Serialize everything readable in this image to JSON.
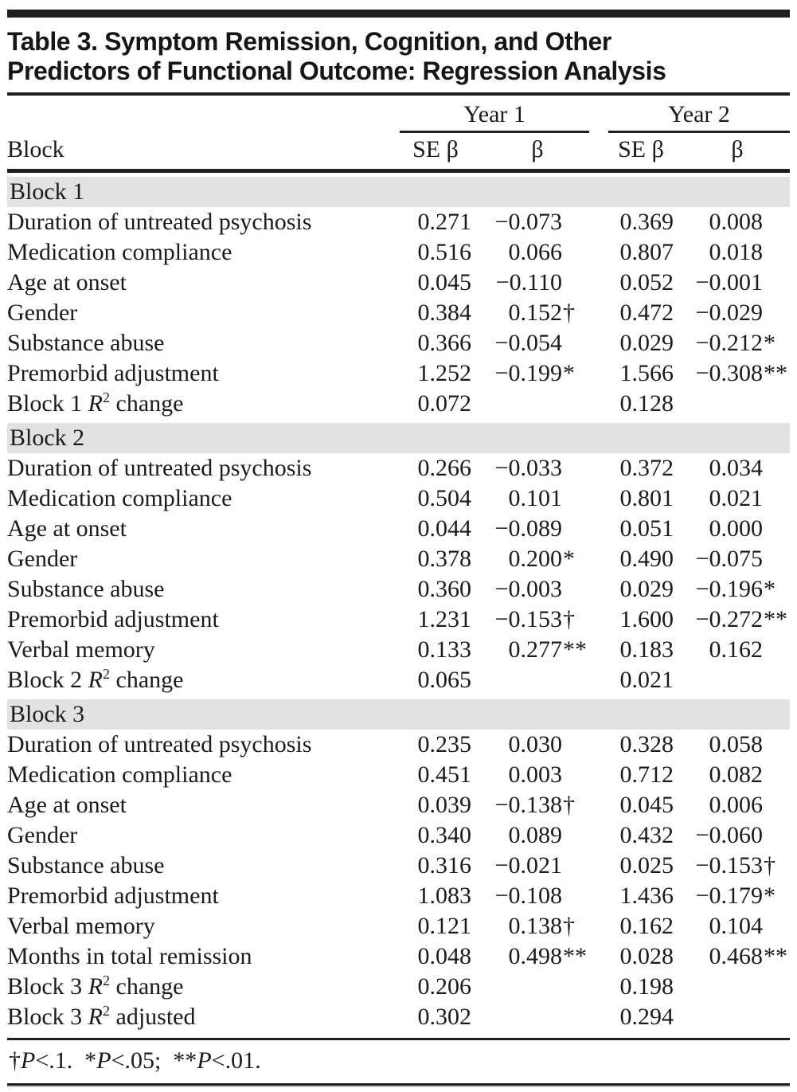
{
  "title": {
    "line1": "Table 3. Symptom Remission, Cognition, and Other",
    "line2": "Predictors of Functional Outcome: Regression Analysis"
  },
  "columns": {
    "row_header": "Block",
    "year1": "Year 1",
    "year2": "Year 2",
    "se_year1": "SE β",
    "beta_year1": "β",
    "se_year2": "SE β",
    "beta_year2": "β"
  },
  "blocks": [
    {
      "name": "Block 1",
      "rows": [
        {
          "label": "Duration of untreated psychosis",
          "se1": "0.271",
          "b1": "−0.073",
          "b1s": "",
          "se2": "0.369",
          "b2": "0.008",
          "b2s": ""
        },
        {
          "label": "Medication compliance",
          "se1": "0.516",
          "b1": "0.066",
          "b1s": "",
          "se2": "0.807",
          "b2": "0.018",
          "b2s": ""
        },
        {
          "label": "Age at onset",
          "se1": "0.045",
          "b1": "−0.110",
          "b1s": "",
          "se2": "0.052",
          "b2": "−0.001",
          "b2s": ""
        },
        {
          "label": "Gender",
          "se1": "0.384",
          "b1": "0.152",
          "b1s": "†",
          "se2": "0.472",
          "b2": "−0.029",
          "b2s": ""
        },
        {
          "label": "Substance abuse",
          "se1": "0.366",
          "b1": "−0.054",
          "b1s": "",
          "se2": "0.029",
          "b2": "−0.212",
          "b2s": "*"
        },
        {
          "label": "Premorbid adjustment",
          "se1": "1.252",
          "b1": "−0.199",
          "b1s": "*",
          "se2": "1.566",
          "b2": "−0.308",
          "b2s": "**"
        },
        {
          "label_pre": "Block 1 ",
          "label_math": "R",
          "label_sup": "2",
          "label_post": " change",
          "se1": "0.072",
          "b1": "",
          "b1s": "",
          "se2": "0.128",
          "b2": "",
          "b2s": ""
        }
      ]
    },
    {
      "name": "Block 2",
      "rows": [
        {
          "label": "Duration of untreated psychosis",
          "se1": "0.266",
          "b1": "−0.033",
          "b1s": "",
          "se2": "0.372",
          "b2": "0.034",
          "b2s": ""
        },
        {
          "label": "Medication compliance",
          "se1": "0.504",
          "b1": "0.101",
          "b1s": "",
          "se2": "0.801",
          "b2": "0.021",
          "b2s": ""
        },
        {
          "label": "Age at onset",
          "se1": "0.044",
          "b1": "−0.089",
          "b1s": "",
          "se2": "0.051",
          "b2": "0.000",
          "b2s": ""
        },
        {
          "label": "Gender",
          "se1": "0.378",
          "b1": "0.200",
          "b1s": "*",
          "se2": "0.490",
          "b2": "−0.075",
          "b2s": ""
        },
        {
          "label": "Substance abuse",
          "se1": "0.360",
          "b1": "−0.003",
          "b1s": "",
          "se2": "0.029",
          "b2": "−0.196",
          "b2s": "*"
        },
        {
          "label": "Premorbid adjustment",
          "se1": "1.231",
          "b1": "−0.153",
          "b1s": "†",
          "se2": "1.600",
          "b2": "−0.272",
          "b2s": "**"
        },
        {
          "label": "Verbal memory",
          "se1": "0.133",
          "b1": "0.277",
          "b1s": "**",
          "se2": "0.183",
          "b2": "0.162",
          "b2s": ""
        },
        {
          "label_pre": "Block 2 ",
          "label_math": "R",
          "label_sup": "2",
          "label_post": " change",
          "se1": "0.065",
          "b1": "",
          "b1s": "",
          "se2": "0.021",
          "b2": "",
          "b2s": ""
        }
      ]
    },
    {
      "name": "Block 3",
      "rows": [
        {
          "label": "Duration of untreated psychosis",
          "se1": "0.235",
          "b1": "0.030",
          "b1s": "",
          "se2": "0.328",
          "b2": "0.058",
          "b2s": ""
        },
        {
          "label": "Medication compliance",
          "se1": "0.451",
          "b1": "0.003",
          "b1s": "",
          "se2": "0.712",
          "b2": "0.082",
          "b2s": ""
        },
        {
          "label": "Age at onset",
          "se1": "0.039",
          "b1": "−0.138",
          "b1s": "†",
          "se2": "0.045",
          "b2": "0.006",
          "b2s": ""
        },
        {
          "label": "Gender",
          "se1": "0.340",
          "b1": "0.089",
          "b1s": "",
          "se2": "0.432",
          "b2": "−0.060",
          "b2s": ""
        },
        {
          "label": "Substance abuse",
          "se1": "0.316",
          "b1": "−0.021",
          "b1s": "",
          "se2": "0.025",
          "b2": "−0.153",
          "b2s": "†"
        },
        {
          "label": "Premorbid adjustment",
          "se1": "1.083",
          "b1": "−0.108",
          "b1s": "",
          "se2": "1.436",
          "b2": "−0.179",
          "b2s": "*"
        },
        {
          "label": "Verbal memory",
          "se1": "0.121",
          "b1": "0.138",
          "b1s": "†",
          "se2": "0.162",
          "b2": "0.104",
          "b2s": ""
        },
        {
          "label": "Months in total remission",
          "se1": "0.048",
          "b1": "0.498",
          "b1s": "**",
          "se2": "0.028",
          "b2": "0.468",
          "b2s": "**"
        },
        {
          "label_pre": "Block 3 ",
          "label_math": "R",
          "label_sup": "2",
          "label_post": " change",
          "se1": "0.206",
          "b1": "",
          "b1s": "",
          "se2": "0.198",
          "b2": "",
          "b2s": ""
        },
        {
          "label_pre": "Block 3 ",
          "label_math": "R",
          "label_sup": "2",
          "label_post": " adjusted",
          "se1": "0.302",
          "b1": "",
          "b1s": "",
          "se2": "0.294",
          "b2": "",
          "b2s": ""
        }
      ]
    }
  ],
  "footnote": {
    "seg1_sym": "†",
    "seg1_p": "P",
    "seg1_rest": "<.1.",
    "seg2_sym": "*",
    "seg2_p": "P",
    "seg2_rest": "<.05;",
    "seg3_sym": "**",
    "seg3_p": "P",
    "seg3_rest": "<.01."
  }
}
